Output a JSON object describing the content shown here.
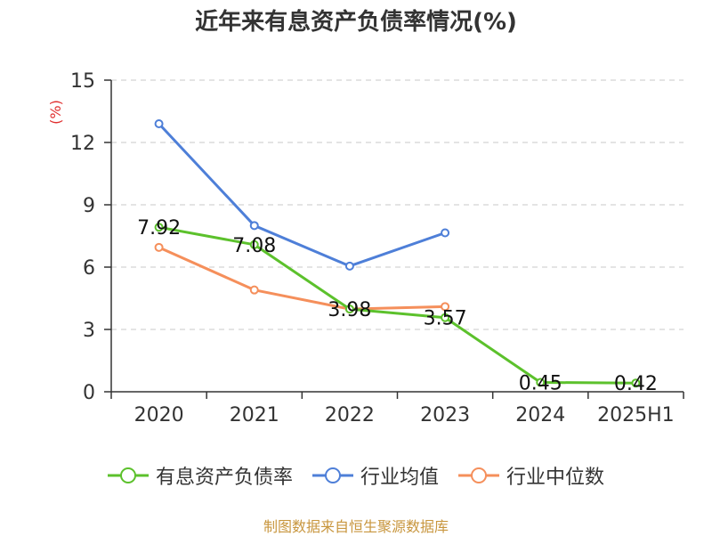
{
  "chart_data": {
    "type": "line",
    "title": "近年来有息资产负债率情况(%)",
    "ylabel": "(%)",
    "xlabel": "",
    "categories": [
      "2020",
      "2021",
      "2022",
      "2023",
      "2024",
      "2025H1"
    ],
    "ylim": [
      0,
      15
    ],
    "yticks": [
      0,
      3,
      6,
      9,
      12,
      15
    ],
    "grid": "horizontal-dashed",
    "legend_position": "bottom",
    "series": [
      {
        "name": "有息资产负债率",
        "color": "#5cc12c",
        "values": [
          7.92,
          7.08,
          3.98,
          3.57,
          0.45,
          0.42
        ],
        "labels": [
          "7.92",
          "7.08",
          "3.98",
          "3.57",
          "0.45",
          "0.42"
        ]
      },
      {
        "name": "行业均值",
        "color": "#4e7fd8",
        "values": [
          12.9,
          8.0,
          6.05,
          7.65,
          null,
          null
        ]
      },
      {
        "name": "行业中位数",
        "color": "#f58f5b",
        "values": [
          6.95,
          4.9,
          3.98,
          4.1,
          null,
          null
        ]
      }
    ],
    "source": "制图数据来自恒生聚源数据库"
  }
}
